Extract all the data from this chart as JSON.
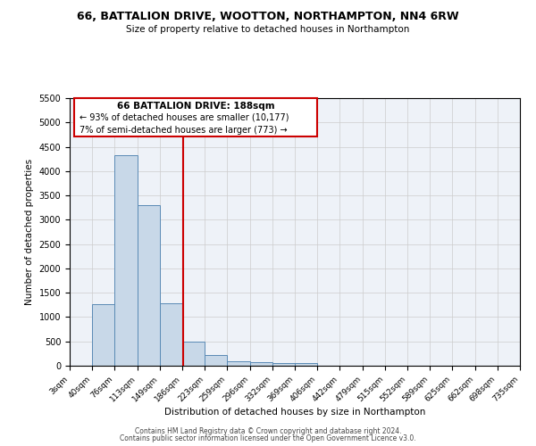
{
  "title": "66, BATTALION DRIVE, WOOTTON, NORTHAMPTON, NN4 6RW",
  "subtitle": "Size of property relative to detached houses in Northampton",
  "xlabel": "Distribution of detached houses by size in Northampton",
  "ylabel": "Number of detached properties",
  "property_label": "66 BATTALION DRIVE: 188sqm",
  "pct_smaller": "93% of detached houses are smaller (10,177)",
  "pct_larger": "7% of semi-detached houses are larger (773)",
  "vline_x": 188,
  "bar_color": "#c8d8e8",
  "bar_edge_color": "#5a8ab5",
  "vline_color": "#cc0000",
  "annotation_box_color": "#cc0000",
  "background_color": "#eef2f8",
  "grid_color": "#cccccc",
  "bins": [
    3,
    40,
    76,
    113,
    149,
    186,
    223,
    259,
    296,
    332,
    369,
    406,
    442,
    479,
    515,
    552,
    589,
    625,
    662,
    698,
    735
  ],
  "counts": [
    0,
    1270,
    4330,
    3300,
    1290,
    490,
    215,
    95,
    75,
    55,
    60,
    0,
    0,
    0,
    0,
    0,
    0,
    0,
    0,
    0
  ],
  "ylim": [
    0,
    5500
  ],
  "yticks": [
    0,
    500,
    1000,
    1500,
    2000,
    2500,
    3000,
    3500,
    4000,
    4500,
    5000,
    5500
  ],
  "footer1": "Contains HM Land Registry data © Crown copyright and database right 2024.",
  "footer2": "Contains public sector information licensed under the Open Government Licence v3.0."
}
